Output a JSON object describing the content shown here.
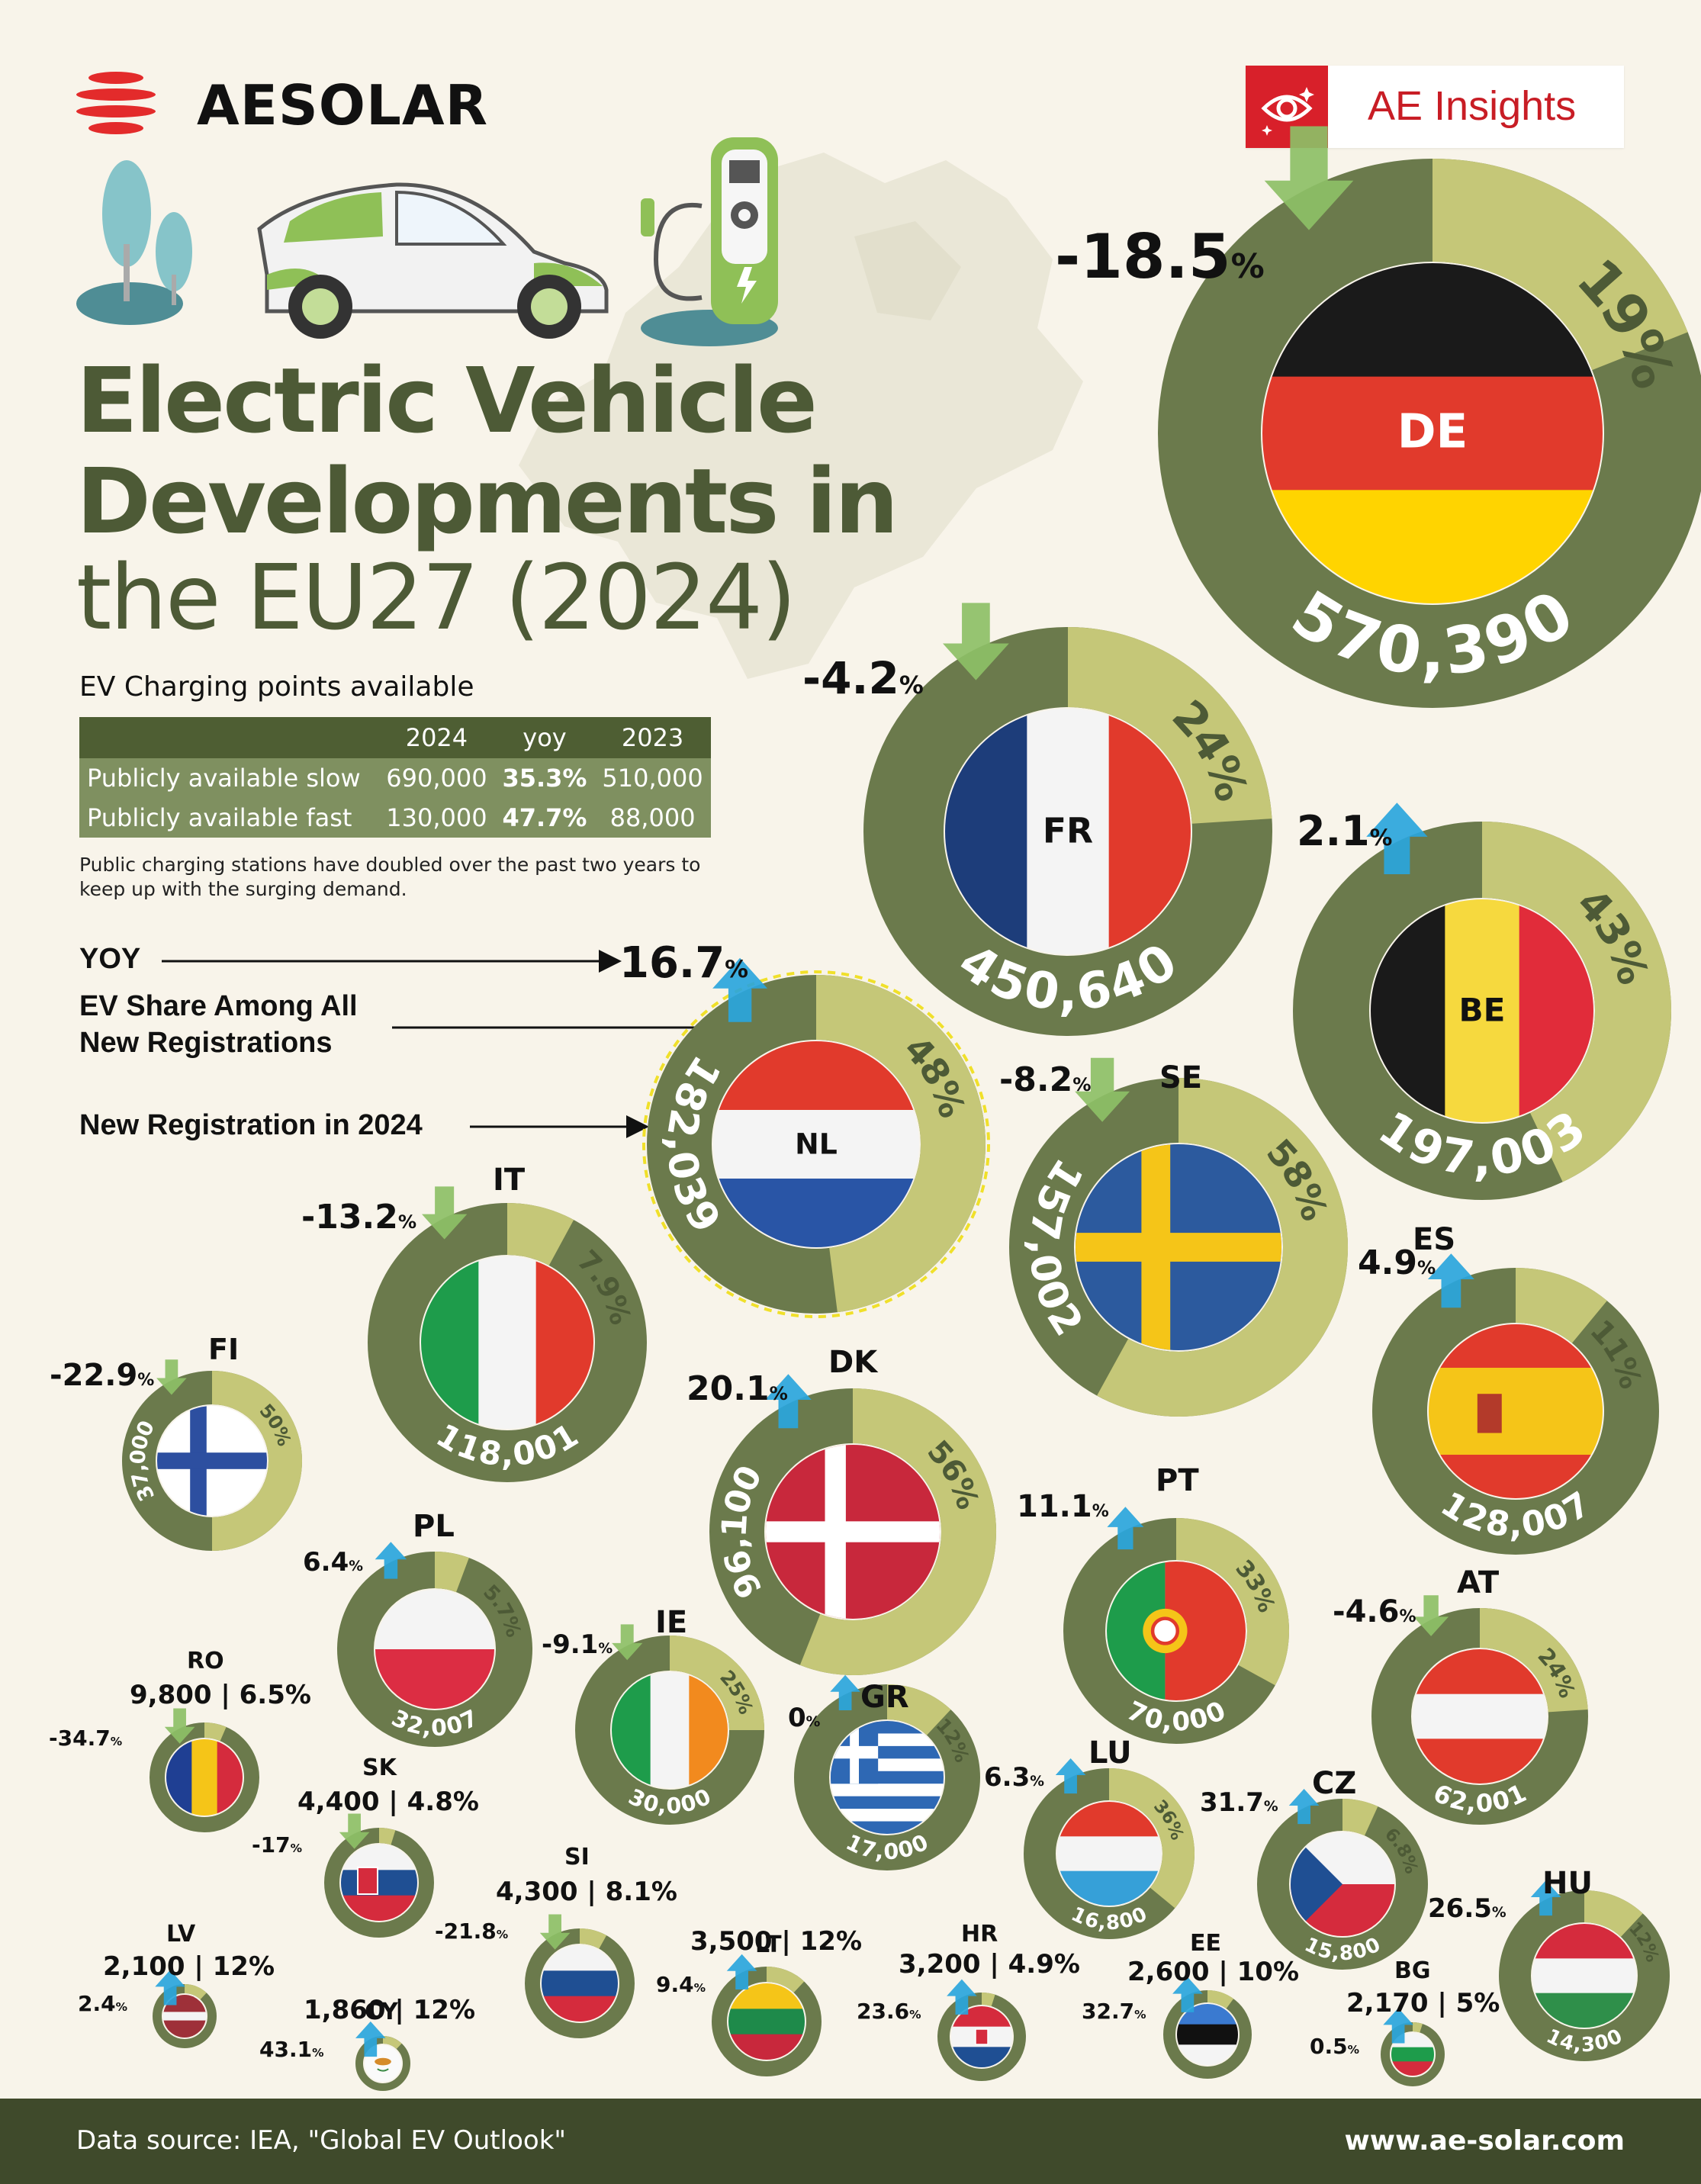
{
  "brand": {
    "name": "AESOLAR",
    "insights_label": "AE Insights"
  },
  "title": {
    "line1": "Electric Vehicle",
    "line2": "Developments in",
    "line3": "the EU27 (2024)"
  },
  "charging": {
    "heading": "EV Charging points available",
    "columns": [
      "",
      "2024",
      "yoy",
      "2023"
    ],
    "rows": [
      {
        "label": "Publicly available slow",
        "v2024": "690,000",
        "yoy": "35.3%",
        "v2023": "510,000"
      },
      {
        "label": "Publicly available fast",
        "v2024": "130,000",
        "yoy": "47.7%",
        "v2023": "88,000"
      }
    ],
    "note": "Public charging stations have doubled over the past two years to keep up with the surging demand."
  },
  "legend": {
    "yoy": "YOY",
    "share_line1": "EV Share Among All",
    "share_line2": "New Registrations",
    "registrations": "New Registration in 2024"
  },
  "colors": {
    "ring_dark": "#6b7a4c",
    "ring_light": "#c5c778",
    "arrow_down": "#8dbf66",
    "arrow_up": "#2aa5dc",
    "background": "#f8f4ea",
    "footer": "#3f4a2b"
  },
  "chart_data": {
    "type": "donut",
    "metrics": [
      "New Registration in 2024",
      "EV Share Among All New Registrations",
      "YOY"
    ],
    "countries": [
      {
        "code": "DE",
        "registrations": "570,390",
        "share": "19%",
        "yoy": "-18.5",
        "flag": "de-flag"
      },
      {
        "code": "FR",
        "registrations": "450,640",
        "share": "24%",
        "yoy": "-4.2",
        "flag": "fr-flag"
      },
      {
        "code": "BE",
        "registrations": "197,003",
        "share": "43%",
        "yoy": "2.1",
        "flag": "be-flag"
      },
      {
        "code": "NL",
        "registrations": "182,039",
        "share": "48%",
        "yoy": "16.7",
        "flag": "nl-flag"
      },
      {
        "code": "SE",
        "registrations": "157,002",
        "share": "58%",
        "yoy": "-8.2",
        "flag": "se-flag"
      },
      {
        "code": "ES",
        "registrations": "128,007",
        "share": "11%",
        "yoy": "4.9",
        "flag": "es-flag"
      },
      {
        "code": "IT",
        "registrations": "118,001",
        "share": "7.9%",
        "yoy": "-13.2",
        "flag": "it-flag"
      },
      {
        "code": "DK",
        "registrations": "96,100",
        "share": "56%",
        "yoy": "20.1",
        "flag": "dk-flag"
      },
      {
        "code": "PT",
        "registrations": "70,000",
        "share": "33%",
        "yoy": "11.1",
        "flag": "pt-flag"
      },
      {
        "code": "AT",
        "registrations": "62,001",
        "share": "24%",
        "yoy": "-4.6",
        "flag": "at-flag"
      },
      {
        "code": "FI",
        "registrations": "37,000",
        "share": "50%",
        "yoy": "-22.9",
        "flag": "fi-flag"
      },
      {
        "code": "PL",
        "registrations": "32,007",
        "share": "5.7%",
        "yoy": "6.4",
        "flag": "pl-flag"
      },
      {
        "code": "IE",
        "registrations": "30,000",
        "share": "25%",
        "yoy": "-9.1",
        "flag": "ie-flag"
      },
      {
        "code": "GR",
        "registrations": "17,000",
        "share": "12%",
        "yoy": "0",
        "flag": "gr-flag"
      },
      {
        "code": "LU",
        "registrations": "16,800",
        "share": "36%",
        "yoy": "6.3",
        "flag": "lu-flag"
      },
      {
        "code": "CZ",
        "registrations": "15,800",
        "share": "6.8%",
        "yoy": "31.7",
        "flag": "cz-flag"
      },
      {
        "code": "HU",
        "registrations": "14,300",
        "share": "12%",
        "yoy": "26.5",
        "flag": "hu-flag"
      },
      {
        "code": "RO",
        "registrations": "9,800",
        "share": "6.5%",
        "yoy": "-34.7",
        "summary": "9,800 | 6.5%",
        "flag": "ro-flag"
      },
      {
        "code": "SK",
        "registrations": "4,400",
        "share": "4.8%",
        "yoy": "-17",
        "summary": "4,400 | 4.8%",
        "flag": "sk-flag"
      },
      {
        "code": "SI",
        "registrations": "4,300",
        "share": "8.1%",
        "yoy": "-21.8",
        "summary": "4,300 | 8.1%",
        "flag": "si-flag"
      },
      {
        "code": "LT",
        "registrations": "3,500",
        "share": "12%",
        "yoy": "9.4",
        "summary": "3,500 | 12%",
        "flag": "lt-flag"
      },
      {
        "code": "HR",
        "registrations": "3,200",
        "share": "4.9%",
        "yoy": "23.6",
        "summary": "3,200 | 4.9%",
        "flag": "hr-flag"
      },
      {
        "code": "EE",
        "registrations": "2,600",
        "share": "10%",
        "yoy": "32.7",
        "summary": "2,600 | 10%",
        "flag": "ee-flag"
      },
      {
        "code": "BG",
        "registrations": "2,170",
        "share": "5%",
        "yoy": "0.5",
        "summary": "2,170 | 5%",
        "flag": "bg-flag"
      },
      {
        "code": "LV",
        "registrations": "2,100",
        "share": "12%",
        "yoy": "2.4",
        "summary": "2,100 | 12%",
        "flag": "lv-flag"
      },
      {
        "code": "CY",
        "registrations": "1,860",
        "share": "12%",
        "yoy": "43.1",
        "summary": "1,860 | 12%",
        "flag": "cy-flag"
      }
    ]
  },
  "footer": {
    "source": "Data source: IEA, \"Global EV Outlook\"",
    "url": "www.ae-solar.com"
  }
}
